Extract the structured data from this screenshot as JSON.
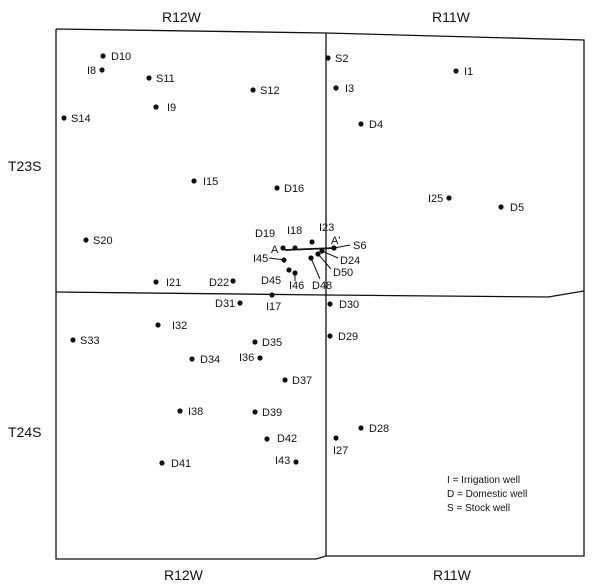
{
  "range_labels": {
    "top_left": "R12W",
    "top_right": "R11W",
    "bottom_left": "R12W",
    "bottom_right": "R11W"
  },
  "township_labels": {
    "north": "T23S",
    "south": "T24S"
  },
  "legend": {
    "irrigation": "I = Irrigation well",
    "domestic": "D = Domestic well",
    "stock": "S = Stock well"
  },
  "cross_section": {
    "start": "A",
    "end": "A'"
  },
  "wells": [
    {
      "id": "D10"
    },
    {
      "id": "I8"
    },
    {
      "id": "S11"
    },
    {
      "id": "I9"
    },
    {
      "id": "S12"
    },
    {
      "id": "S14"
    },
    {
      "id": "I15"
    },
    {
      "id": "D16"
    },
    {
      "id": "S20"
    },
    {
      "id": "I21"
    },
    {
      "id": "D22"
    },
    {
      "id": "D19"
    },
    {
      "id": "I18"
    },
    {
      "id": "I23"
    },
    {
      "id": "S6"
    },
    {
      "id": "D24"
    },
    {
      "id": "D50"
    },
    {
      "id": "I45"
    },
    {
      "id": "D45"
    },
    {
      "id": "I46"
    },
    {
      "id": "D48"
    },
    {
      "id": "S2"
    },
    {
      "id": "I3"
    },
    {
      "id": "D4"
    },
    {
      "id": "I1"
    },
    {
      "id": "I25"
    },
    {
      "id": "D5"
    },
    {
      "id": "D31"
    },
    {
      "id": "I17"
    },
    {
      "id": "D30"
    },
    {
      "id": "I32"
    },
    {
      "id": "S33"
    },
    {
      "id": "D35"
    },
    {
      "id": "D34"
    },
    {
      "id": "I36"
    },
    {
      "id": "D29"
    },
    {
      "id": "D37"
    },
    {
      "id": "I38"
    },
    {
      "id": "D39"
    },
    {
      "id": "D42"
    },
    {
      "id": "D28"
    },
    {
      "id": "I27"
    },
    {
      "id": "D41"
    },
    {
      "id": "I43"
    }
  ]
}
